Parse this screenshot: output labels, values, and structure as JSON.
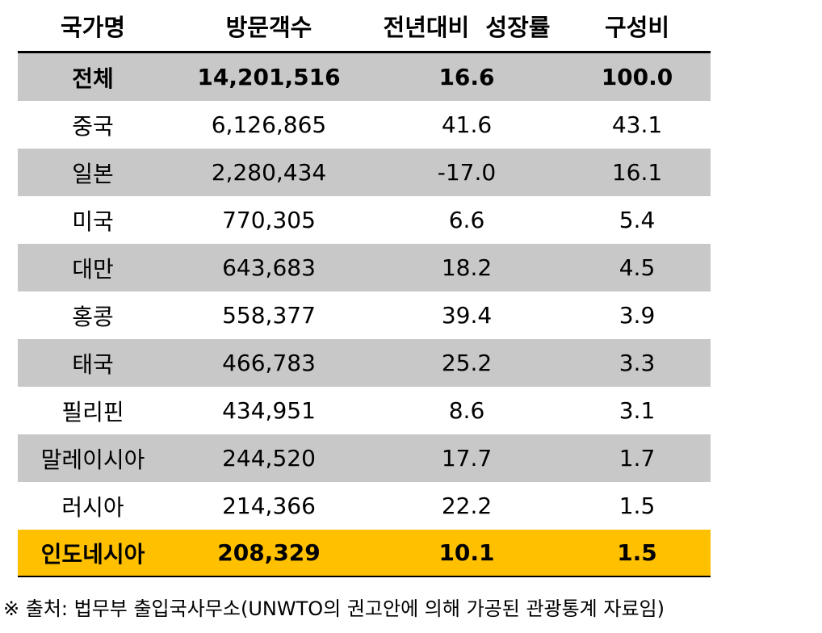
{
  "columns": [
    "국가명",
    "방문객수",
    "전년대비  성장률",
    "구성비"
  ],
  "rows": [
    {
      "country": "전체",
      "visitors": "14,201,516",
      "growth": "16.6",
      "share": "100.0"
    },
    {
      "country": "중국",
      "visitors": "6,126,865",
      "growth": "41.6",
      "share": "43.1"
    },
    {
      "country": "일본",
      "visitors": "2,280,434",
      "growth": "-17.0",
      "share": "16.1"
    },
    {
      "country": "미국",
      "visitors": "770,305",
      "growth": "6.6",
      "share": "5.4"
    },
    {
      "country": "대만",
      "visitors": "643,683",
      "growth": "18.2",
      "share": "4.5"
    },
    {
      "country": "홍콩",
      "visitors": "558,377",
      "growth": "39.4",
      "share": "3.9"
    },
    {
      "country": "태국",
      "visitors": "466,783",
      "growth": "25.2",
      "share": "3.3"
    },
    {
      "country": "필리핀",
      "visitors": "434,951",
      "growth": "8.6",
      "share": "3.1"
    },
    {
      "country": "말레이시아",
      "visitors": "244,520",
      "growth": "17.7",
      "share": "1.7"
    },
    {
      "country": "러시아",
      "visitors": "214,366",
      "growth": "22.2",
      "share": "1.5"
    },
    {
      "country": "인도네시아",
      "visitors": "208,329",
      "growth": "10.1",
      "share": "1.5"
    }
  ],
  "source": "※ 출처: 법무부 출입국사무소(UNWTO의 권고안에 의해 가공된 관광통계 자료임)",
  "colors": {
    "shaded_row": "#c8c8c8",
    "highlight_row": "#ffc000"
  }
}
